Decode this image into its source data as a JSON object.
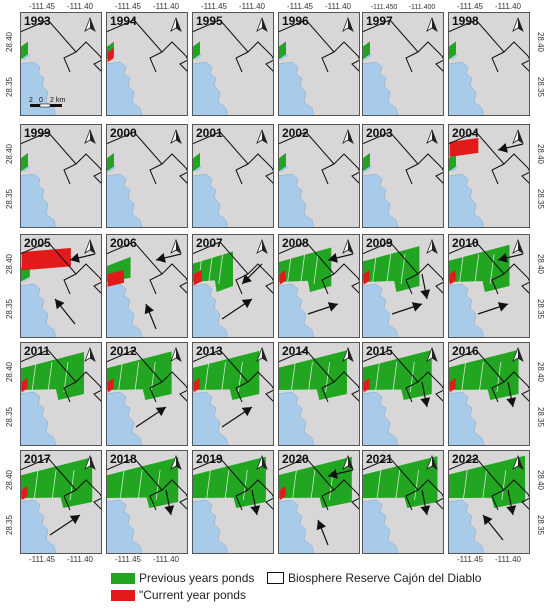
{
  "colors": {
    "panel_bg": "#d8d6d6",
    "water": "#a9cbea",
    "previous_ponds": "#22a622",
    "current_ponds": "#e21a1a",
    "boundary": "#111111",
    "arrow": "#111111"
  },
  "top_x_ticks": [
    "-111.45",
    "-111.40",
    "-111.45",
    "-111.40",
    "-111.45",
    "-111.40",
    "-111.45",
    "-111.40",
    "-111.450",
    "-111.400",
    "-111.45",
    "-111.40"
  ],
  "bottom_x_ticks": [
    "-111.45",
    "-111.40",
    "-111.45",
    "-111.40",
    "-111.45",
    "-111.40"
  ],
  "left_y_ticks": [
    "28.40",
    "28.35"
  ],
  "right_y_ticks": [
    "28.40",
    "28.35"
  ],
  "scale_bar": {
    "label_left": "2",
    "label_mid": "0",
    "label_right": "2 km"
  },
  "north_arrow_icon": "north-arrow-icon",
  "panels": [
    {
      "year": "1993",
      "green": 0.05,
      "red": 0,
      "arrows": []
    },
    {
      "year": "1994",
      "green": 0.05,
      "red": 0.02,
      "arrows": []
    },
    {
      "year": "1995",
      "green": 0.06,
      "red": 0,
      "arrows": []
    },
    {
      "year": "1996",
      "green": 0.06,
      "red": 0,
      "arrows": []
    },
    {
      "year": "1997",
      "green": 0.06,
      "red": 0,
      "arrows": []
    },
    {
      "year": "1998",
      "green": 0.06,
      "red": 0,
      "arrows": []
    },
    {
      "year": "1999",
      "green": 0.08,
      "red": 0,
      "arrows": []
    },
    {
      "year": "2000",
      "green": 0.08,
      "red": 0,
      "arrows": []
    },
    {
      "year": "2001",
      "green": 0.08,
      "red": 0,
      "arrows": []
    },
    {
      "year": "2002",
      "green": 0.08,
      "red": 0,
      "arrows": []
    },
    {
      "year": "2003",
      "green": 0.08,
      "red": 0,
      "arrows": []
    },
    {
      "year": "2004",
      "green": 0.08,
      "red": 0.35,
      "arrows": [
        {
          "dir": "left"
        }
      ]
    },
    {
      "year": "2005",
      "green": 0.12,
      "red": 0.6,
      "arrows": [
        {
          "dir": "left"
        },
        {
          "dir": "upleft"
        }
      ]
    },
    {
      "year": "2006",
      "green": 0.3,
      "red": 0.2,
      "arrows": [
        {
          "dir": "left"
        },
        {
          "dir": "up"
        }
      ]
    },
    {
      "year": "2007",
      "green": 0.5,
      "red": 0.1,
      "arrows": [
        {
          "dir": "downleft"
        },
        {
          "dir": "upright"
        }
      ]
    },
    {
      "year": "2008",
      "green": 0.65,
      "red": 0.05,
      "arrows": [
        {
          "dir": "left"
        },
        {
          "dir": "right"
        }
      ]
    },
    {
      "year": "2009",
      "green": 0.7,
      "red": 0.05,
      "arrows": [
        {
          "dir": "down"
        },
        {
          "dir": "right"
        }
      ]
    },
    {
      "year": "2010",
      "green": 0.75,
      "red": 0.05,
      "arrows": [
        {
          "dir": "right"
        },
        {
          "dir": "left"
        }
      ]
    },
    {
      "year": "2011",
      "green": 0.78,
      "red": 0.02,
      "arrows": []
    },
    {
      "year": "2012",
      "green": 0.8,
      "red": 0.04,
      "arrows": [
        {
          "dir": "upright"
        }
      ]
    },
    {
      "year": "2013",
      "green": 0.82,
      "red": 0.03,
      "arrows": [
        {
          "dir": "upright"
        }
      ]
    },
    {
      "year": "2014",
      "green": 0.84,
      "red": 0,
      "arrows": []
    },
    {
      "year": "2015",
      "green": 0.85,
      "red": 0.03,
      "arrows": [
        {
          "dir": "down"
        }
      ]
    },
    {
      "year": "2016",
      "green": 0.86,
      "red": 0.03,
      "arrows": [
        {
          "dir": "down"
        }
      ]
    },
    {
      "year": "2017",
      "green": 0.88,
      "red": 0.02,
      "arrows": [
        {
          "dir": "upright"
        }
      ]
    },
    {
      "year": "2018",
      "green": 0.88,
      "red": 0,
      "arrows": [
        {
          "dir": "down"
        }
      ]
    },
    {
      "year": "2019",
      "green": 0.9,
      "red": 0,
      "arrows": [
        {
          "dir": "down"
        }
      ]
    },
    {
      "year": "2020",
      "green": 0.9,
      "red": 0.02,
      "arrows": [
        {
          "dir": "left"
        },
        {
          "dir": "up"
        }
      ]
    },
    {
      "year": "2021",
      "green": 0.92,
      "red": 0,
      "arrows": [
        {
          "dir": "down"
        }
      ]
    },
    {
      "year": "2022",
      "green": 0.94,
      "red": 0,
      "arrows": [
        {
          "dir": "upleft"
        },
        {
          "dir": "down"
        }
      ]
    }
  ],
  "legend": {
    "previous_label": "Previous years ponds",
    "current_label": "\"Current year ponds",
    "reserve_label": "Biosphere Reserve Cajón del Diablo"
  }
}
